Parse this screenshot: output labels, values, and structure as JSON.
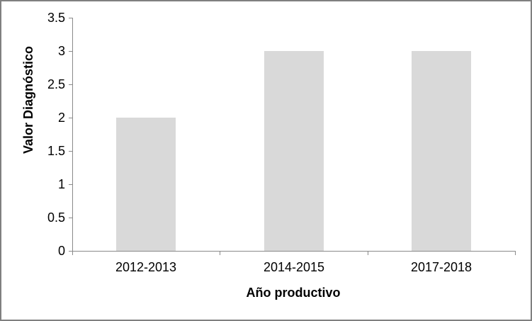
{
  "chart_data": {
    "type": "bar",
    "title": "",
    "categories": [
      "2012-2013",
      "2014-2015",
      "2017-2018"
    ],
    "values": [
      2,
      3,
      3
    ],
    "xlabel": "Año productivo",
    "ylabel": "Valor Diagnóstico",
    "ylim": [
      0,
      3.5
    ],
    "yticks": [
      0,
      0.5,
      1,
      1.5,
      2,
      2.5,
      3,
      3.5
    ],
    "grid": false,
    "legend": false,
    "bar_color": "#D9D9D9",
    "axis_color": "#898989",
    "text_color": "#000000",
    "frame_border_color": "#808080",
    "background_color": "#FFFFFF"
  }
}
